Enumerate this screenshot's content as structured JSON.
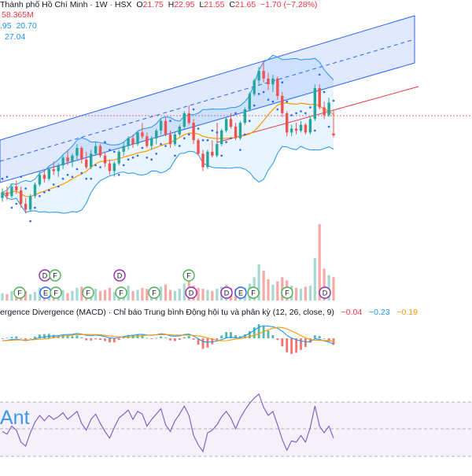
{
  "header": {
    "symbol_line": "Thành phố Hồ Chí Minh · 1W · HSX",
    "open_key": "O",
    "open": "21.75",
    "high_key": "H",
    "high": "22.95",
    "low_key": "L",
    "low": "21.55",
    "close_key": "C",
    "close": "21.65",
    "change": "−1.70 (−7.28%)",
    "volume": "58.365M",
    "bb_val1": ".95",
    "bb_val2": "20.70",
    "ind_val": "27.04"
  },
  "macd": {
    "title": "ergence Divergence (MACD) · Chỉ báo Trung bình Động hội tụ và phân kỳ (12, 26, close, 9)",
    "hist": "−0.04",
    "macd_val": "−0.23",
    "signal_val": "−0.19"
  },
  "rsi": {
    "label": "Ant"
  },
  "colors": {
    "up": "#26a69a",
    "down": "#ef5350",
    "channel": "#2962ff",
    "bb": "#2196f3",
    "ma": "#ff9800",
    "rsi": "#7e57c2"
  },
  "chart_data": {
    "type": "candlestick",
    "interval": "1W",
    "last": {
      "open": 21.75,
      "high": 22.95,
      "low": 21.55,
      "close": 21.65,
      "change": -1.7,
      "change_pct": -7.28
    },
    "candles": [
      [
        18.4,
        18.9,
        18.2,
        18.7
      ],
      [
        18.7,
        19.0,
        18.3,
        18.5
      ],
      [
        18.5,
        19.1,
        18.4,
        19.0
      ],
      [
        19.0,
        19.3,
        18.6,
        18.8
      ],
      [
        18.8,
        19.0,
        17.9,
        18.1
      ],
      [
        18.1,
        18.4,
        17.6,
        17.8
      ],
      [
        17.8,
        18.6,
        17.7,
        18.5
      ],
      [
        18.5,
        19.2,
        18.4,
        19.1
      ],
      [
        19.1,
        19.8,
        19.0,
        19.6
      ],
      [
        19.6,
        19.9,
        19.2,
        19.4
      ],
      [
        19.4,
        20.0,
        19.3,
        19.9
      ],
      [
        19.9,
        20.3,
        19.6,
        19.8
      ],
      [
        19.8,
        20.2,
        19.5,
        20.1
      ],
      [
        20.1,
        20.6,
        19.9,
        20.5
      ],
      [
        20.5,
        20.9,
        20.1,
        20.3
      ],
      [
        20.3,
        20.7,
        20.0,
        20.6
      ],
      [
        20.6,
        21.2,
        20.4,
        21.0
      ],
      [
        21.0,
        21.1,
        20.2,
        20.4
      ],
      [
        20.4,
        20.8,
        19.9,
        20.0
      ],
      [
        20.0,
        20.9,
        19.9,
        20.7
      ],
      [
        20.7,
        21.3,
        20.6,
        21.1
      ],
      [
        21.1,
        21.2,
        20.5,
        20.6
      ],
      [
        20.6,
        20.8,
        20.0,
        20.2
      ],
      [
        20.2,
        20.4,
        19.6,
        19.8
      ],
      [
        19.8,
        20.3,
        19.5,
        20.2
      ],
      [
        20.2,
        20.9,
        20.1,
        20.8
      ],
      [
        20.8,
        21.3,
        20.6,
        21.1
      ],
      [
        21.1,
        21.6,
        20.9,
        21.5
      ],
      [
        21.5,
        21.7,
        21.0,
        21.2
      ],
      [
        21.2,
        21.9,
        21.1,
        21.8
      ],
      [
        21.8,
        22.3,
        21.5,
        21.6
      ],
      [
        21.6,
        21.8,
        21.0,
        21.1
      ],
      [
        21.1,
        21.6,
        20.9,
        21.5
      ],
      [
        21.5,
        22.0,
        21.2,
        21.9
      ],
      [
        21.9,
        22.5,
        21.7,
        22.4
      ],
      [
        22.4,
        22.6,
        21.6,
        21.7
      ],
      [
        21.7,
        21.9,
        21.0,
        21.2
      ],
      [
        21.2,
        21.8,
        21.1,
        21.7
      ],
      [
        21.7,
        22.2,
        21.6,
        22.1
      ],
      [
        22.1,
        22.9,
        22.0,
        22.8
      ],
      [
        22.8,
        23.2,
        22.2,
        22.3
      ],
      [
        22.3,
        22.5,
        21.2,
        21.4
      ],
      [
        21.4,
        21.5,
        20.6,
        20.7
      ],
      [
        20.7,
        20.9,
        19.8,
        20.0
      ],
      [
        20.0,
        20.9,
        19.9,
        20.8
      ],
      [
        20.8,
        21.4,
        20.5,
        20.6
      ],
      [
        20.6,
        21.3,
        20.5,
        21.2
      ],
      [
        21.2,
        22.0,
        21.1,
        21.9
      ],
      [
        21.9,
        22.6,
        21.8,
        22.5
      ],
      [
        22.5,
        22.8,
        22.0,
        22.1
      ],
      [
        22.1,
        22.3,
        21.4,
        21.5
      ],
      [
        21.5,
        22.4,
        21.4,
        22.3
      ],
      [
        22.3,
        23.1,
        22.2,
        23.0
      ],
      [
        23.0,
        23.9,
        22.9,
        23.8
      ],
      [
        23.8,
        24.6,
        23.7,
        24.5
      ],
      [
        24.5,
        25.2,
        24.3,
        25.0
      ],
      [
        25.0,
        25.5,
        24.4,
        24.6
      ],
      [
        24.6,
        24.9,
        24.0,
        24.3
      ],
      [
        24.3,
        24.8,
        23.9,
        24.6
      ],
      [
        24.6,
        24.7,
        23.5,
        23.7
      ],
      [
        23.7,
        23.9,
        22.6,
        22.8
      ],
      [
        22.8,
        22.9,
        21.6,
        21.8
      ],
      [
        21.8,
        22.2,
        21.6,
        22.0
      ],
      [
        22.0,
        22.3,
        21.7,
        21.9
      ],
      [
        21.9,
        22.4,
        21.8,
        22.2
      ],
      [
        22.2,
        22.3,
        21.7,
        21.8
      ],
      [
        21.8,
        22.6,
        21.7,
        22.5
      ],
      [
        22.5,
        24.3,
        22.4,
        24.1
      ],
      [
        24.1,
        24.3,
        23.0,
        23.1
      ],
      [
        23.1,
        23.4,
        22.5,
        22.7
      ],
      [
        22.7,
        23.6,
        22.6,
        23.35
      ],
      [
        21.75,
        22.95,
        21.55,
        21.65
      ]
    ],
    "volume": [
      7,
      6,
      9,
      5,
      11,
      9,
      6,
      8,
      12,
      7,
      9,
      6,
      8,
      10,
      7,
      9,
      12,
      13,
      10,
      8,
      11,
      9,
      10,
      12,
      8,
      9,
      11,
      14,
      9,
      10,
      12,
      11,
      9,
      10,
      13,
      15,
      10,
      9,
      11,
      16,
      18,
      14,
      12,
      11,
      10,
      9,
      11,
      13,
      15,
      12,
      11,
      10,
      12,
      16,
      22,
      34,
      28,
      20,
      15,
      18,
      22,
      19,
      14,
      12,
      11,
      13,
      14,
      40,
      72,
      30,
      24,
      22
    ],
    "macd": [
      -0.1,
      -0.08,
      -0.05,
      -0.03,
      -0.06,
      -0.09,
      -0.06,
      -0.02,
      0.03,
      0.05,
      0.08,
      0.09,
      0.11,
      0.14,
      0.15,
      0.16,
      0.19,
      0.17,
      0.12,
      0.11,
      0.13,
      0.11,
      0.07,
      0.02,
      0.0,
      0.03,
      0.07,
      0.11,
      0.12,
      0.15,
      0.16,
      0.13,
      0.12,
      0.14,
      0.18,
      0.16,
      0.1,
      0.08,
      0.1,
      0.15,
      0.17,
      0.09,
      -0.02,
      -0.13,
      -0.15,
      -0.14,
      -0.11,
      -0.05,
      0.02,
      0.05,
      0.02,
      0.03,
      0.1,
      0.2,
      0.32,
      0.44,
      0.5,
      0.48,
      0.46,
      0.4,
      0.28,
      0.12,
      0.01,
      -0.06,
      -0.1,
      -0.14,
      -0.13,
      -0.02,
      -0.04,
      -0.1,
      -0.15,
      -0.23
    ],
    "rsi": [
      48,
      46,
      52,
      49,
      40,
      37,
      47,
      55,
      60,
      56,
      60,
      57,
      59,
      62,
      57,
      60,
      63,
      54,
      49,
      57,
      61,
      54,
      48,
      43,
      51,
      58,
      61,
      64,
      57,
      63,
      61,
      52,
      57,
      61,
      65,
      53,
      48,
      56,
      61,
      67,
      60,
      45,
      38,
      33,
      47,
      49,
      53,
      59,
      63,
      58,
      50,
      58,
      64,
      69,
      73,
      76,
      66,
      60,
      63,
      53,
      42,
      34,
      41,
      40,
      45,
      40,
      51,
      67,
      52,
      47,
      52,
      43
    ]
  }
}
